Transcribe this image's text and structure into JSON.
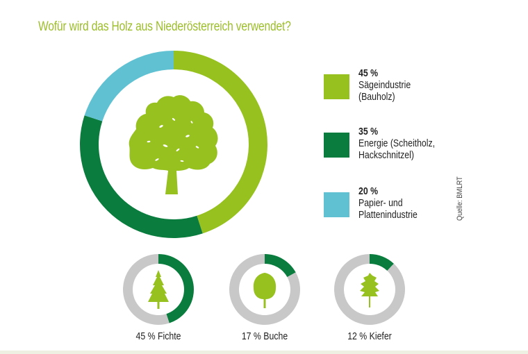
{
  "title": "Wofür wird das Holz aus Niederösterreich verwendet?",
  "source": "Quelle: BMLRT",
  "colors": {
    "saege": "#96c11f",
    "energie": "#0a7d3e",
    "papier": "#5fc1d2",
    "gray": "#c8c8c8",
    "tree": "#96c11f",
    "title": "#9cbe2a"
  },
  "legend": [
    {
      "pct": "45 %",
      "label_line1": "Sägeindustrie",
      "label_line2": "(Bauholz)",
      "color": "#96c11f"
    },
    {
      "pct": "35 %",
      "label_line1": "Energie (Scheitholz,",
      "label_line2": "Hackschnitzel)",
      "color": "#0a7d3e"
    },
    {
      "pct": "20 %",
      "label_line1": "Papier- und",
      "label_line2": "Plattenindustrie",
      "color": "#5fc1d2"
    }
  ],
  "small_charts": [
    {
      "label": "45 % Fichte",
      "value": 45,
      "tree": "spruce"
    },
    {
      "label": "17 % Buche",
      "value": 17,
      "tree": "beech"
    },
    {
      "label": "12 % Kiefer",
      "value": 12,
      "tree": "pine"
    }
  ],
  "chart_data": [
    {
      "type": "pie",
      "variant": "donut",
      "title": "Wofür wird das Holz aus Niederösterreich verwendet?",
      "categories": [
        "Sägeindustrie (Bauholz)",
        "Energie (Scheitholz, Hackschnitzel)",
        "Papier- und Plattenindustrie"
      ],
      "values": [
        45,
        35,
        20
      ],
      "unit": "%",
      "colors": [
        "#96c11f",
        "#0a7d3e",
        "#5fc1d2"
      ],
      "start_angle": "12 o'clock, clockwise",
      "legend_position": "right",
      "source": "Quelle: BMLRT"
    },
    {
      "type": "pie",
      "variant": "donut",
      "title": "Baumarten",
      "categories": [
        "Fichte",
        "Buche",
        "Kiefer"
      ],
      "values": [
        45,
        17,
        12
      ],
      "unit": "%",
      "note": "Three separate single-value donuts, dark green share vs gray remainder"
    }
  ]
}
